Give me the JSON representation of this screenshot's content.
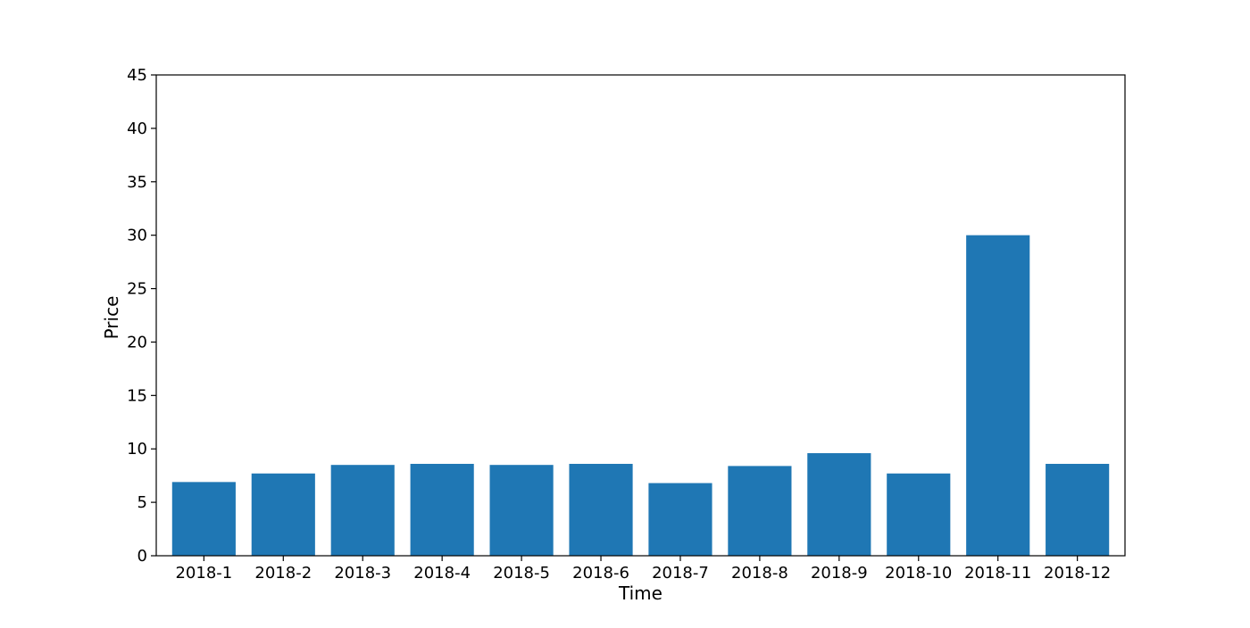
{
  "chart_data": {
    "type": "bar",
    "title": "",
    "xlabel": "Time",
    "ylabel": "Price",
    "categories": [
      "2018-1",
      "2018-2",
      "2018-3",
      "2018-4",
      "2018-5",
      "2018-6",
      "2018-7",
      "2018-8",
      "2018-9",
      "2018-10",
      "2018-11",
      "2018-12"
    ],
    "values": [
      6.9,
      7.7,
      8.5,
      8.6,
      8.5,
      8.6,
      6.8,
      8.4,
      9.6,
      7.7,
      30.0,
      8.6
    ],
    "ylim": [
      0,
      45
    ],
    "yticks": [
      0,
      5,
      10,
      15,
      20,
      25,
      30,
      35,
      40,
      45
    ],
    "grid": false,
    "legend": "none",
    "colors": {
      "bar": "#1f77b4",
      "axis": "#000000",
      "background": "#ffffff"
    }
  }
}
